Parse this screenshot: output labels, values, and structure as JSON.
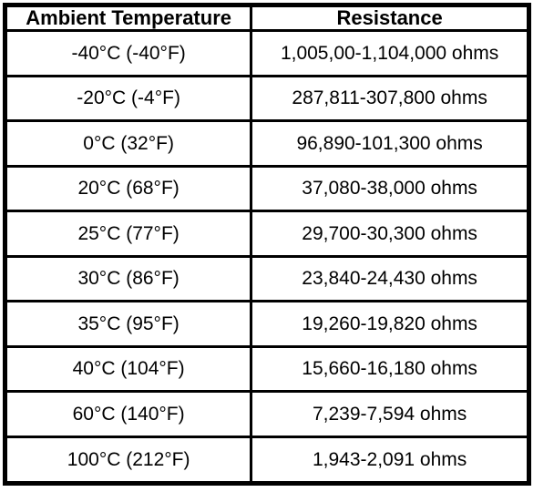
{
  "table": {
    "headers": [
      "Ambient Temperature",
      "Resistance"
    ],
    "rows": [
      [
        "-40°C (-40°F)",
        "1,005,00-1,104,000 ohms"
      ],
      [
        "-20°C (-4°F)",
        "287,811-307,800 ohms"
      ],
      [
        "0°C (32°F)",
        "96,890-101,300 ohms"
      ],
      [
        "20°C (68°F)",
        "37,080-38,000 ohms"
      ],
      [
        "25°C (77°F)",
        "29,700-30,300 ohms"
      ],
      [
        "30°C (86°F)",
        "23,840-24,430 ohms"
      ],
      [
        "35°C (95°F)",
        "19,260-19,820 ohms"
      ],
      [
        "40°C (104°F)",
        "15,660-16,180 ohms"
      ],
      [
        "60°C (140°F)",
        "7,239-7,594 ohms"
      ],
      [
        "100°C (212°F)",
        "1,943-2,091 ohms"
      ]
    ],
    "colors": {
      "border": "#000000",
      "background": "#ffffff",
      "text": "#000000"
    }
  },
  "chart_data": {
    "type": "table",
    "title": "",
    "columns": [
      "Ambient Temperature",
      "Resistance"
    ],
    "rows": [
      [
        "-40°C (-40°F)",
        "1,005,00-1,104,000 ohms"
      ],
      [
        "-20°C (-4°F)",
        "287,811-307,800 ohms"
      ],
      [
        "0°C (32°F)",
        "96,890-101,300 ohms"
      ],
      [
        "20°C (68°F)",
        "37,080-38,000 ohms"
      ],
      [
        "25°C (77°F)",
        "29,700-30,300 ohms"
      ],
      [
        "30°C (86°F)",
        "23,840-24,430 ohms"
      ],
      [
        "35°C (95°F)",
        "19,260-19,820 ohms"
      ],
      [
        "40°C (104°F)",
        "15,660-16,180 ohms"
      ],
      [
        "60°C (140°F)",
        "7,239-7,594 ohms"
      ],
      [
        "100°C (212°F)",
        "1,943-2,091 ohms"
      ]
    ]
  }
}
